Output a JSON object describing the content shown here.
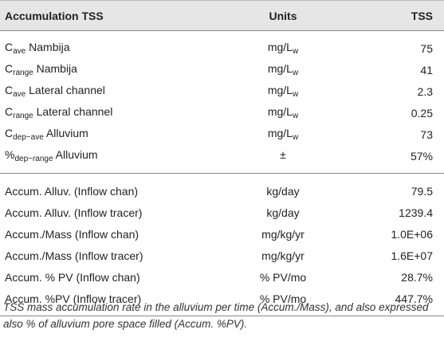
{
  "headers": {
    "c1": "Accumulation TSS",
    "c2": "Units",
    "c3": "TSS"
  },
  "rows1": [
    {
      "base": "C",
      "sub": "ave",
      "name": " Nambija",
      "ubase": "mg/L",
      "usub": "w",
      "val": "75"
    },
    {
      "base": "C",
      "sub": "range",
      "name": " Nambija",
      "ubase": "mg/L",
      "usub": "w",
      "val": "41"
    },
    {
      "base": "C",
      "sub": "ave",
      "name": " Lateral channel",
      "ubase": "mg/L",
      "usub": "w",
      "val": "2.3"
    },
    {
      "base": "C",
      "sub": "range",
      "name": " Lateral channel",
      "ubase": "mg/L",
      "usub": "w",
      "val": "0.25"
    },
    {
      "base": "C",
      "sub": "dep−ave",
      "name": " Alluvium",
      "ubase": "mg/L",
      "usub": "w",
      "val": "73"
    },
    {
      "base": "%",
      "sub": "dep−range",
      "name": " Alluvium",
      "ubase": "±",
      "usub": "",
      "val": "57%"
    }
  ],
  "rows2": [
    {
      "name": "Accum. Alluv. (Inflow chan)",
      "unit": "kg/day",
      "val": "79.5"
    },
    {
      "name": "Accum. Alluv. (Inflow tracer)",
      "unit": "kg/day",
      "val": "1239.4"
    },
    {
      "name": "Accum./Mass (Inflow chan)",
      "unit": "mg/kg/yr",
      "val": "1.0E+06"
    },
    {
      "name": "Accum./Mass (Inflow tracer)",
      "unit": "mg/kg/yr",
      "val": "1.6E+07"
    },
    {
      "name": "Accum. % PV (Inflow chan)",
      "unit": "% PV/mo",
      "val": "28.7%"
    },
    {
      "name": "Accum. %PV (Inflow tracer)",
      "unit": "% PV/mo",
      "val": "447.7%"
    }
  ],
  "caption": "TSS mass accumulation rate in the alluvium per time (Accum./Mass), and also expressed also % of alluvium pore space filled (Accum. %PV)."
}
